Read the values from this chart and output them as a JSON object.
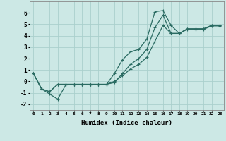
{
  "xlabel": "Humidex (Indice chaleur)",
  "x": [
    0,
    1,
    2,
    3,
    4,
    5,
    6,
    7,
    8,
    9,
    10,
    11,
    12,
    13,
    14,
    15,
    16,
    17,
    18,
    19,
    20,
    21,
    22,
    23
  ],
  "line1": [
    0.7,
    -0.65,
    -1.1,
    -1.55,
    -0.3,
    -0.3,
    -0.3,
    -0.3,
    -0.3,
    -0.3,
    0.7,
    1.9,
    2.6,
    2.8,
    3.7,
    6.1,
    6.2,
    4.9,
    4.2,
    4.6,
    4.6,
    4.6,
    4.9,
    4.9
  ],
  "line2": [
    0.7,
    -0.65,
    -0.9,
    -0.25,
    -0.25,
    -0.25,
    -0.25,
    -0.25,
    -0.25,
    -0.25,
    -0.1,
    0.7,
    1.5,
    2.0,
    2.8,
    4.7,
    5.8,
    4.2,
    4.2,
    4.6,
    4.6,
    4.6,
    4.9,
    4.9
  ],
  "line3": [
    0.7,
    -0.65,
    -0.9,
    -0.25,
    -0.25,
    -0.25,
    -0.25,
    -0.25,
    -0.25,
    -0.25,
    0.0,
    0.5,
    1.1,
    1.5,
    2.1,
    3.5,
    4.9,
    4.2,
    4.2,
    4.55,
    4.55,
    4.55,
    4.85,
    4.85
  ],
  "line_color": "#2a6b62",
  "bg_color": "#cce8e5",
  "grid_color": "#aad0cc",
  "ylim": [
    -2.5,
    7.0
  ],
  "xlim": [
    -0.5,
    23.5
  ],
  "yticks": [
    -2,
    -1,
    0,
    1,
    2,
    3,
    4,
    5,
    6
  ],
  "xticks": [
    0,
    1,
    2,
    3,
    4,
    5,
    6,
    7,
    8,
    9,
    10,
    11,
    12,
    13,
    14,
    15,
    16,
    17,
    18,
    19,
    20,
    21,
    22,
    23
  ]
}
